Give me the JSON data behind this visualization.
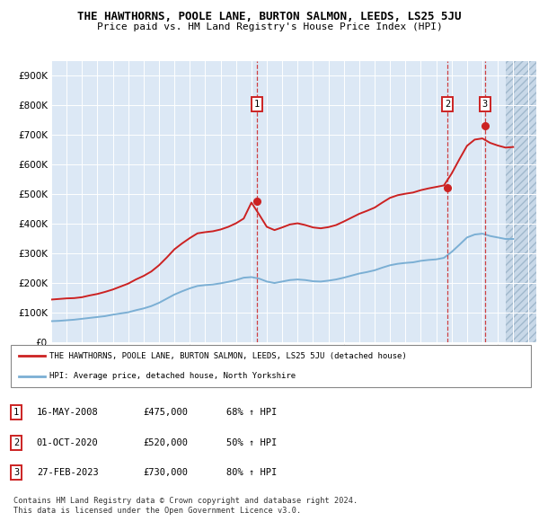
{
  "title": "THE HAWTHORNS, POOLE LANE, BURTON SALMON, LEEDS, LS25 5JU",
  "subtitle": "Price paid vs. HM Land Registry's House Price Index (HPI)",
  "ytick_values": [
    0,
    100000,
    200000,
    300000,
    400000,
    500000,
    600000,
    700000,
    800000,
    900000
  ],
  "ylim": [
    0,
    950000
  ],
  "xlim_start": 1995.0,
  "xlim_end": 2026.5,
  "hpi_color": "#7bafd4",
  "property_color": "#cc2222",
  "sale_points": [
    {
      "year": 2008.37,
      "price": 475000,
      "label": "1",
      "date": "16-MAY-2008",
      "hpi_pct": "68%"
    },
    {
      "year": 2020.75,
      "price": 520000,
      "label": "2",
      "date": "01-OCT-2020",
      "hpi_pct": "50%"
    },
    {
      "year": 2023.16,
      "price": 730000,
      "label": "3",
      "date": "27-FEB-2023",
      "hpi_pct": "80%"
    }
  ],
  "legend_property": "THE HAWTHORNS, POOLE LANE, BURTON SALMON, LEEDS, LS25 5JU (detached house)",
  "legend_hpi": "HPI: Average price, detached house, North Yorkshire",
  "footer": "Contains HM Land Registry data © Crown copyright and database right 2024.\nThis data is licensed under the Open Government Licence v3.0.",
  "background_plot": "#dce8f5",
  "grid_color": "#ffffff",
  "hpi_data_x": [
    1995.0,
    1995.5,
    1996.0,
    1996.5,
    1997.0,
    1997.5,
    1998.0,
    1998.5,
    1999.0,
    1999.5,
    2000.0,
    2000.5,
    2001.0,
    2001.5,
    2002.0,
    2002.5,
    2003.0,
    2003.5,
    2004.0,
    2004.5,
    2005.0,
    2005.5,
    2006.0,
    2006.5,
    2007.0,
    2007.5,
    2008.0,
    2008.5,
    2009.0,
    2009.5,
    2010.0,
    2010.5,
    2011.0,
    2011.5,
    2012.0,
    2012.5,
    2013.0,
    2013.5,
    2014.0,
    2014.5,
    2015.0,
    2015.5,
    2016.0,
    2016.5,
    2017.0,
    2017.5,
    2018.0,
    2018.5,
    2019.0,
    2019.5,
    2020.0,
    2020.5,
    2021.0,
    2021.5,
    2022.0,
    2022.5,
    2023.0,
    2023.5,
    2024.0,
    2024.5,
    2025.0
  ],
  "hpi_data_y": [
    70000,
    71000,
    73000,
    75000,
    78000,
    81000,
    84000,
    87000,
    92000,
    96000,
    100000,
    107000,
    113000,
    121000,
    132000,
    146000,
    160000,
    171000,
    181000,
    189000,
    192000,
    194000,
    198000,
    203000,
    209000,
    217000,
    219000,
    214000,
    204000,
    199000,
    204000,
    209000,
    211000,
    209000,
    205000,
    204000,
    207000,
    211000,
    217000,
    224000,
    231000,
    236000,
    242000,
    251000,
    259000,
    264000,
    267000,
    269000,
    274000,
    277000,
    279000,
    284000,
    304000,
    328000,
    353000,
    363000,
    366000,
    358000,
    353000,
    348000,
    348000
  ],
  "property_data_x": [
    1995.0,
    1995.5,
    1996.0,
    1996.5,
    1997.0,
    1997.5,
    1998.0,
    1998.5,
    1999.0,
    1999.5,
    2000.0,
    2000.5,
    2001.0,
    2001.5,
    2002.0,
    2002.5,
    2003.0,
    2003.5,
    2004.0,
    2004.5,
    2005.0,
    2005.5,
    2006.0,
    2006.5,
    2007.0,
    2007.5,
    2008.0,
    2008.5,
    2009.0,
    2009.5,
    2010.0,
    2010.5,
    2011.0,
    2011.5,
    2012.0,
    2012.5,
    2013.0,
    2013.5,
    2014.0,
    2014.5,
    2015.0,
    2015.5,
    2016.0,
    2016.5,
    2017.0,
    2017.5,
    2018.0,
    2018.5,
    2019.0,
    2019.5,
    2020.0,
    2020.5,
    2021.0,
    2021.5,
    2022.0,
    2022.5,
    2023.0,
    2023.5,
    2024.0,
    2024.5,
    2025.0
  ],
  "property_data_y": [
    143000,
    145000,
    147000,
    148000,
    151000,
    157000,
    162000,
    169000,
    177000,
    187000,
    197000,
    211000,
    223000,
    238000,
    259000,
    285000,
    313000,
    333000,
    351000,
    367000,
    371000,
    374000,
    380000,
    389000,
    401000,
    417000,
    471000,
    431000,
    389000,
    378000,
    387000,
    397000,
    401000,
    395000,
    387000,
    384000,
    388000,
    395000,
    407000,
    420000,
    433000,
    443000,
    454000,
    471000,
    487000,
    496000,
    501000,
    505000,
    513000,
    519000,
    524000,
    529000,
    569000,
    617000,
    663000,
    684000,
    688000,
    673000,
    664000,
    657000,
    659000
  ]
}
